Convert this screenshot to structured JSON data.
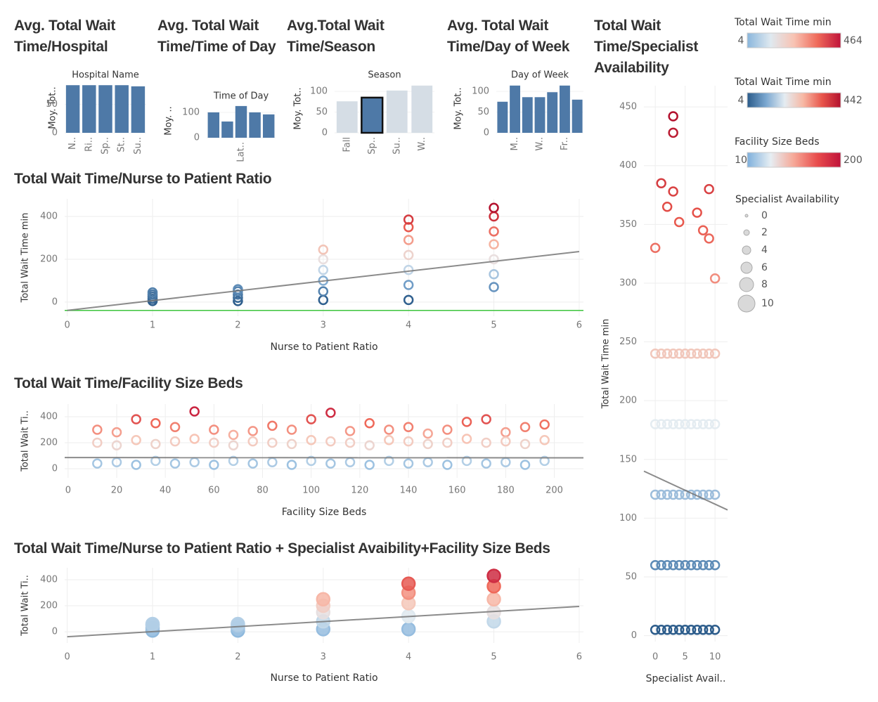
{
  "chart_data": [
    {
      "type": "bar",
      "title": "Avg. Total Wait Time/Hospital",
      "subtitle": "Hospital Name",
      "ylabel": "Moy. Tot..",
      "categories": [
        "N..",
        "Ri..",
        "Sp..",
        "St..",
        "Su.."
      ],
      "values": [
        84,
        84,
        84,
        84,
        82
      ],
      "ylim": [
        0,
        88
      ],
      "yticks": [
        0,
        50
      ],
      "color": "#4e79a7"
    },
    {
      "type": "bar",
      "title": "Avg. Total Wait Time/Time of Day",
      "subtitle": "Time of Day",
      "ylabel": "Moy. ..",
      "categories": [
        null,
        null,
        "Lat..",
        null,
        null
      ],
      "values": [
        100,
        64,
        125,
        100,
        92
      ],
      "ylim": [
        0,
        133
      ],
      "yticks": [
        0,
        100
      ],
      "color": "#4e79a7"
    },
    {
      "type": "bar",
      "title": "Avg.Total Wait Time/Season",
      "subtitle": "Season",
      "ylabel": "Moy. Tot..",
      "categories": [
        "Fall",
        "Sp..",
        "Su..",
        "W.."
      ],
      "values": [
        76,
        85,
        102,
        114
      ],
      "ylim": [
        0,
        117
      ],
      "yticks": [
        0,
        50,
        100
      ],
      "color": "#d5dde5",
      "highlight": 1,
      "highlight_color": "#4e79a7"
    },
    {
      "type": "bar",
      "title": "Avg. Total Wait Time/Day of Week",
      "subtitle": "Day of Week",
      "ylabel": "Moy. Tot..",
      "categories": [
        null,
        "M..",
        null,
        "W..",
        null,
        "Fr..",
        null
      ],
      "values": [
        75,
        114,
        86,
        86,
        98,
        114,
        80
      ],
      "ylim": [
        0,
        117
      ],
      "yticks": [
        0,
        50,
        100
      ],
      "color": "#4e79a7"
    },
    {
      "type": "scatter",
      "title": "Total Wait Time/Nurse to Patient Ratio",
      "xlabel": "Nurse to Patient Ratio",
      "ylabel": "Total Wait Time min",
      "x": [
        1,
        1,
        1,
        1,
        1,
        2,
        2,
        2,
        2,
        2,
        3,
        3,
        3,
        3,
        3,
        3,
        4,
        4,
        4,
        4,
        4,
        4,
        4,
        5,
        5,
        5,
        5,
        5,
        5,
        5
      ],
      "y": [
        5,
        15,
        25,
        35,
        45,
        5,
        20,
        35,
        50,
        60,
        10,
        50,
        100,
        150,
        200,
        245,
        10,
        80,
        150,
        220,
        290,
        350,
        385,
        70,
        130,
        200,
        270,
        330,
        400,
        440
      ],
      "xlim": [
        -0.03,
        6.05
      ],
      "ylim": [
        -66,
        482
      ],
      "xticks": [
        0,
        1,
        2,
        3,
        4,
        5,
        6
      ],
      "yticks": [
        0,
        200,
        400
      ],
      "trend": {
        "x": [
          0,
          6
        ],
        "y": [
          -39,
          236
        ]
      },
      "reference_line": -39,
      "reference_color": "#3cc43c",
      "color_legend": 1,
      "marker": "open"
    },
    {
      "type": "scatter",
      "title": "Total Wait Time/Facility Size Beds",
      "xlabel": "Facility Size Beds",
      "ylabel": "Total Wait Ti..",
      "x": [
        12,
        20,
        28,
        36,
        44,
        52,
        60,
        68,
        76,
        84,
        92,
        100,
        108,
        116,
        124,
        132,
        140,
        148,
        156,
        164,
        172,
        180,
        188,
        196,
        12,
        20,
        28,
        36,
        44,
        52,
        60,
        68,
        76,
        84,
        92,
        100,
        108,
        116,
        124,
        132,
        140,
        148,
        156,
        164,
        172,
        180,
        188,
        196,
        12,
        20,
        28,
        36,
        44,
        52,
        60,
        68,
        76,
        84,
        92,
        100,
        108,
        116,
        124,
        132,
        140,
        148,
        156,
        164,
        172,
        180,
        188,
        196
      ],
      "y": [
        300,
        280,
        380,
        350,
        320,
        440,
        300,
        260,
        290,
        330,
        300,
        380,
        430,
        290,
        350,
        300,
        320,
        270,
        300,
        360,
        380,
        280,
        320,
        340,
        200,
        180,
        220,
        190,
        210,
        230,
        200,
        180,
        210,
        200,
        190,
        220,
        210,
        200,
        180,
        220,
        210,
        190,
        200,
        230,
        200,
        210,
        190,
        220,
        40,
        50,
        30,
        60,
        40,
        50,
        30,
        60,
        40,
        50,
        30,
        60,
        40,
        50,
        30,
        60,
        40,
        50,
        30,
        60,
        40,
        50,
        30,
        60
      ],
      "xlim": [
        -1.4,
        212
      ],
      "ylim": [
        -70,
        497
      ],
      "xticks": [
        0,
        20,
        40,
        60,
        80,
        100,
        120,
        140,
        160,
        180,
        200
      ],
      "yticks": [
        0,
        200,
        400
      ],
      "trend": {
        "x": [
          -1.4,
          212
        ],
        "y": [
          86,
          84
        ]
      },
      "color_legend": 0,
      "marker": "open"
    },
    {
      "type": "scatter",
      "title": "Total Wait Time/Nurse to Patient Ratio + Specialist Avaibility+Facility Size Beds",
      "xlabel": "Nurse to Patient Ratio",
      "ylabel": "Total Wait Ti..",
      "x": [
        1,
        1,
        1,
        1,
        2,
        2,
        2,
        2,
        3,
        3,
        3,
        3,
        3,
        4,
        4,
        4,
        4,
        4,
        5,
        5,
        5,
        5,
        5
      ],
      "y": [
        10,
        30,
        50,
        60,
        10,
        30,
        50,
        60,
        20,
        80,
        150,
        200,
        250,
        20,
        120,
        220,
        300,
        370,
        80,
        150,
        250,
        350,
        430
      ],
      "xlim": [
        -0.03,
        6.05
      ],
      "ylim": [
        -86,
        492
      ],
      "xticks": [
        0,
        1,
        2,
        3,
        4,
        5,
        6
      ],
      "yticks": [
        0,
        200,
        400
      ],
      "trend": {
        "x": [
          0,
          6
        ],
        "y": [
          -38,
          195
        ]
      },
      "color_legend": 0,
      "marker": "filled"
    },
    {
      "type": "scatter",
      "title": "Total Wait Time/Specialist Availability",
      "xlabel": "Specialist Avail..",
      "ylabel": "Total Wait Time min",
      "x": [
        0,
        0,
        0,
        0,
        0,
        1,
        1,
        1,
        1,
        1,
        2,
        2,
        2,
        2,
        2,
        3,
        3,
        3,
        3,
        3,
        4,
        4,
        4,
        4,
        4,
        5,
        5,
        5,
        5,
        5,
        6,
        6,
        6,
        6,
        6,
        7,
        7,
        7,
        7,
        7,
        8,
        8,
        8,
        8,
        8,
        9,
        9,
        9,
        9,
        9,
        10,
        10,
        10,
        10,
        10,
        3,
        3,
        1,
        3,
        9,
        7,
        2,
        4,
        0,
        10,
        8,
        9
      ],
      "y": [
        5,
        60,
        120,
        180,
        240,
        5,
        60,
        120,
        180,
        240,
        5,
        60,
        120,
        180,
        240,
        5,
        60,
        120,
        180,
        240,
        5,
        60,
        120,
        180,
        240,
        5,
        60,
        120,
        180,
        240,
        5,
        60,
        120,
        180,
        240,
        5,
        60,
        120,
        180,
        240,
        5,
        60,
        120,
        180,
        240,
        5,
        60,
        120,
        180,
        240,
        5,
        60,
        120,
        180,
        240,
        442,
        428,
        385,
        378,
        380,
        360,
        365,
        352,
        330,
        304,
        345,
        338
      ],
      "xlim": [
        -1.9,
        12.1
      ],
      "ylim": [
        -5,
        468
      ],
      "xticks": [
        0,
        5,
        10
      ],
      "yticks": [
        0,
        50,
        100,
        150,
        200,
        250,
        300,
        350,
        400,
        450
      ],
      "trend": {
        "x": [
          -1.9,
          12.1
        ],
        "y": [
          140,
          107
        ]
      },
      "color_legend": 1,
      "marker": "open"
    }
  ],
  "legends": [
    {
      "title": "Total Wait Time min",
      "min": 4,
      "max": 464,
      "colors": [
        "#8ab6dc",
        "#dfe9f0",
        "#f8c3b3",
        "#ef6a5a",
        "#c0133a"
      ]
    },
    {
      "title": "Total Wait Time min",
      "min": 4,
      "max": 442,
      "colors": [
        "#2b5b8a",
        "#7aa7d0",
        "#e4ecf2",
        "#f7b7a3",
        "#e8554b",
        "#b3112e"
      ]
    },
    {
      "title": "Facility Size Beds",
      "min": 10,
      "max": 200,
      "colors": [
        "#7fb0dc",
        "#e6eef3",
        "#f6a796",
        "#e84c4c",
        "#c0133a"
      ]
    }
  ],
  "size_legend": {
    "title": "Specialist Availability",
    "values": [
      0,
      2,
      4,
      6,
      8,
      10
    ]
  }
}
